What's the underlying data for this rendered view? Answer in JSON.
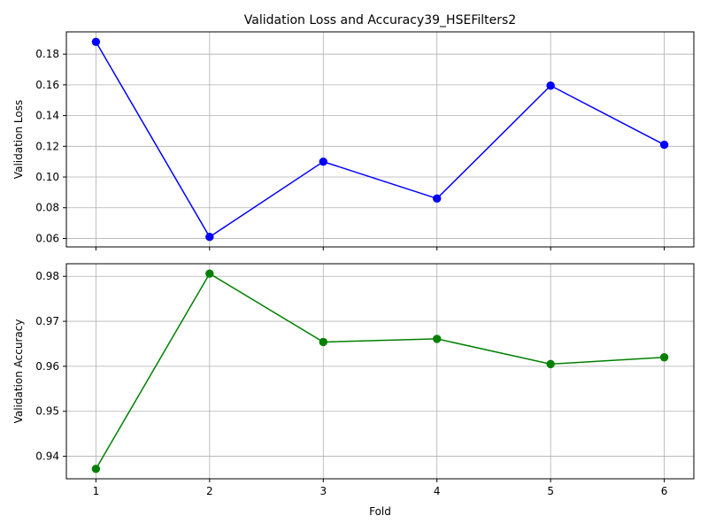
{
  "chart_data": {
    "title": "Validation Loss and Accuracy39_HSEFilters2",
    "xlabel": "Fold",
    "x": [
      1,
      2,
      3,
      4,
      5,
      6
    ],
    "grid": true,
    "panels": [
      {
        "type": "line",
        "ylabel": "Validation Loss",
        "color": "#0000ff",
        "marker": "circle",
        "values": [
          0.188,
          0.061,
          0.11,
          0.086,
          0.1595,
          0.121
        ],
        "ylim": [
          0.0545,
          0.1945
        ],
        "yticks": [
          "0.06",
          "0.08",
          "0.10",
          "0.12",
          "0.14",
          "0.16",
          "0.18"
        ],
        "show_xtick_labels": false
      },
      {
        "type": "line",
        "ylabel": "Validation Accuracy",
        "color": "#008000",
        "marker": "circle",
        "values": [
          0.9372,
          0.9806,
          0.9654,
          0.9661,
          0.9605,
          0.962
        ],
        "ylim": [
          0.935,
          0.9828
        ],
        "yticks": [
          "0.94",
          "0.95",
          "0.96",
          "0.97",
          "0.98"
        ],
        "show_xtick_labels": true
      }
    ],
    "xticks": [
      "1",
      "2",
      "3",
      "4",
      "5",
      "6"
    ],
    "xlim": [
      0.74,
      6.26
    ]
  }
}
